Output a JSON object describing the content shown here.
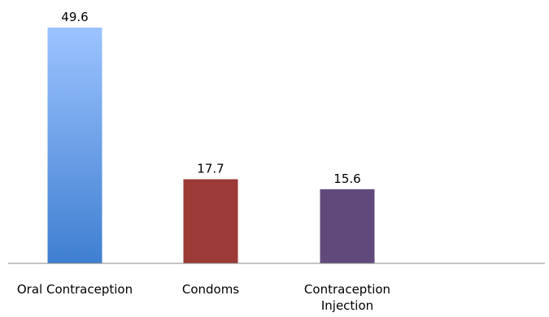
{
  "chart_data": {
    "type": "bar",
    "categories": [
      [
        "Oral Contraception"
      ],
      [
        "Condoms"
      ],
      [
        "Contraception",
        "Injection"
      ]
    ],
    "values": [
      49.6,
      17.7,
      15.6
    ],
    "data_labels": [
      "49.6",
      "17.7",
      "15.6"
    ],
    "colors": [
      {
        "top": "#9cc3ff",
        "bottom": "#3f7fd0"
      },
      {
        "top": "#9b3a36",
        "bottom": "#9b3a36"
      },
      {
        "top": "#604a7b",
        "bottom": "#604a7b"
      }
    ],
    "ylim": [
      0,
      55.4
    ],
    "grid": false,
    "legend": "none"
  }
}
